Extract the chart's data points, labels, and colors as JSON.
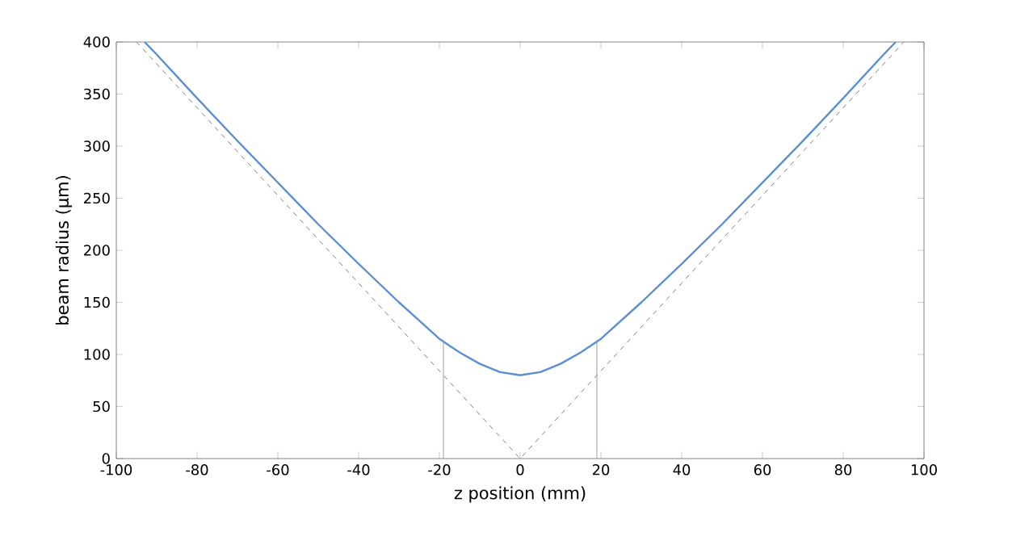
{
  "chart_data": {
    "type": "line",
    "xlabel": "z position (mm)",
    "ylabel": "beam radius (µm)",
    "xlim": [
      -100,
      100
    ],
    "ylim": [
      0,
      400
    ],
    "xticks": [
      -100,
      -80,
      -60,
      -40,
      -20,
      0,
      20,
      40,
      60,
      80,
      100
    ],
    "yticks": [
      0,
      50,
      100,
      150,
      200,
      250,
      300,
      350,
      400
    ],
    "series": [
      {
        "color": "#5b8fd0",
        "line_style": "solid",
        "x": [
          -93,
          -90,
          -80,
          -70,
          -60,
          -50,
          -40,
          -30,
          -20,
          -15,
          -10,
          -5,
          0,
          5,
          10,
          15,
          20,
          30,
          40,
          50,
          60,
          70,
          80,
          90,
          93
        ],
        "values": [
          400,
          388,
          346,
          305,
          265,
          225,
          187,
          150,
          115,
          102,
          91,
          83,
          80,
          83,
          91,
          102,
          115,
          150,
          187,
          225,
          265,
          305,
          346,
          388,
          400
        ]
      },
      {
        "color": "#808080",
        "line_style": "dashed",
        "x": [
          -95,
          0,
          95
        ],
        "values": [
          400,
          0,
          400
        ]
      },
      {
        "color": "#a0a0a0",
        "line_style": "solid",
        "x": [
          -19,
          -19
        ],
        "values": [
          0,
          114
        ]
      },
      {
        "color": "#a0a0a0",
        "line_style": "solid",
        "x": [
          19,
          19
        ],
        "values": [
          0,
          114
        ]
      }
    ]
  }
}
